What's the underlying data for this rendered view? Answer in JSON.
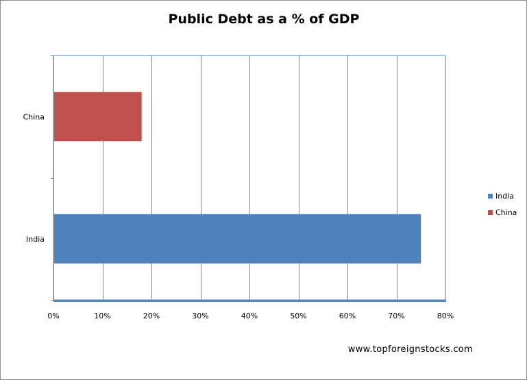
{
  "chart_data": {
    "type": "bar",
    "orientation": "horizontal",
    "title": "Public Debt as a % of GDP",
    "categories": [
      "India",
      "China"
    ],
    "series": [
      {
        "name": "India",
        "values": [
          75,
          null
        ],
        "color": "#4f81bd"
      },
      {
        "name": "China",
        "values": [
          null,
          18
        ],
        "color": "#c0504d"
      }
    ],
    "xlim": [
      0,
      80
    ],
    "x_ticks": [
      "0%",
      "10%",
      "20%",
      "30%",
      "40%",
      "50%",
      "60%",
      "70%",
      "80%"
    ],
    "xlabel": "",
    "ylabel": "",
    "grid": true,
    "legend_position": "right"
  },
  "source": "www.topforeignstocks.com"
}
